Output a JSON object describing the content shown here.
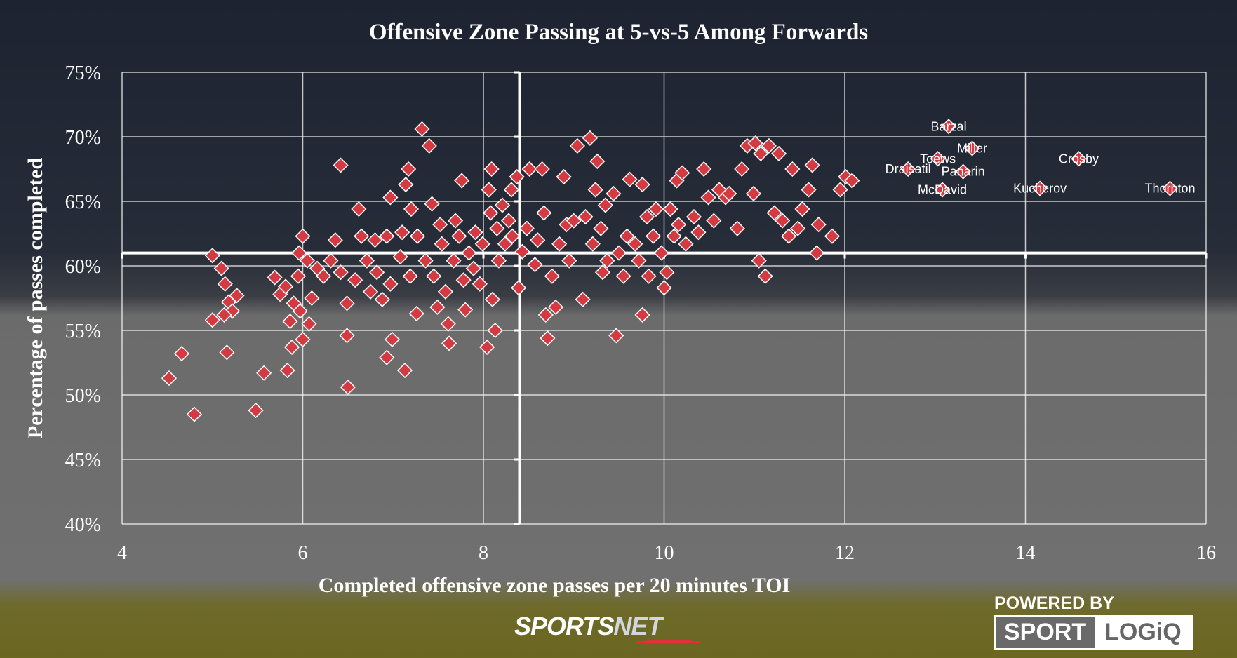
{
  "chart_data": {
    "type": "scatter",
    "title": "Offensive Zone Passing at 5-vs-5 Among Forwards",
    "xlabel": "Completed offensive zone passes per 20 minutes TOI",
    "ylabel": "Percentage of passes completed",
    "xlim": [
      4,
      16
    ],
    "ylim": [
      40,
      75
    ],
    "x_ticks": [
      "4",
      "6",
      "8",
      "10",
      "12",
      "14",
      "16"
    ],
    "y_ticks": [
      "40%",
      "45%",
      "50%",
      "55%",
      "60%",
      "65%",
      "70%",
      "75%"
    ],
    "grid": true,
    "average_lines": {
      "x": 8.4,
      "y": 61.0
    },
    "marker": "diamond",
    "marker_color": "#d43a42",
    "labeled_points": [
      {
        "name": "Barzal",
        "x": 13.15,
        "y": 70.8
      },
      {
        "name": "Miller",
        "x": 13.41,
        "y": 69.1
      },
      {
        "name": "Toews",
        "x": 13.03,
        "y": 68.3
      },
      {
        "name": "Draisatil",
        "x": 12.7,
        "y": 67.5
      },
      {
        "name": "Panarin",
        "x": 13.31,
        "y": 67.3
      },
      {
        "name": "McDavid",
        "x": 13.08,
        "y": 65.9
      },
      {
        "name": "Crosby",
        "x": 14.59,
        "y": 68.3
      },
      {
        "name": "Kucherov",
        "x": 14.16,
        "y": 66.0
      },
      {
        "name": "Thornton",
        "x": 15.6,
        "y": 66.0
      }
    ],
    "points": [
      [
        4.52,
        51.3
      ],
      [
        4.66,
        53.2
      ],
      [
        4.8,
        48.5
      ],
      [
        5.0,
        60.8
      ],
      [
        5.0,
        55.8
      ],
      [
        5.1,
        59.8
      ],
      [
        5.14,
        58.6
      ],
      [
        5.18,
        57.2
      ],
      [
        5.22,
        56.5
      ],
      [
        5.16,
        53.3
      ],
      [
        5.13,
        56.2
      ],
      [
        5.27,
        57.7
      ],
      [
        5.48,
        48.8
      ],
      [
        5.57,
        51.7
      ],
      [
        5.69,
        59.1
      ],
      [
        5.75,
        57.8
      ],
      [
        5.81,
        58.4
      ],
      [
        5.83,
        51.9
      ],
      [
        5.88,
        53.7
      ],
      [
        5.9,
        57.1
      ],
      [
        5.86,
        55.7
      ],
      [
        5.95,
        59.2
      ],
      [
        5.96,
        61.0
      ],
      [
        6.0,
        62.3
      ],
      [
        6.05,
        60.4
      ],
      [
        6.0,
        54.3
      ],
      [
        6.07,
        55.5
      ],
      [
        5.97,
        56.5
      ],
      [
        6.1,
        57.5
      ],
      [
        6.16,
        59.8
      ],
      [
        6.23,
        59.2
      ],
      [
        6.31,
        60.4
      ],
      [
        6.36,
        62.0
      ],
      [
        6.42,
        59.5
      ],
      [
        6.42,
        67.8
      ],
      [
        6.49,
        57.1
      ],
      [
        6.49,
        54.6
      ],
      [
        6.5,
        50.6
      ],
      [
        6.62,
        64.4
      ],
      [
        6.58,
        58.9
      ],
      [
        6.65,
        62.3
      ],
      [
        6.71,
        60.4
      ],
      [
        6.75,
        58.0
      ],
      [
        6.8,
        62.0
      ],
      [
        6.82,
        59.5
      ],
      [
        6.88,
        57.4
      ],
      [
        6.93,
        62.3
      ],
      [
        6.97,
        58.6
      ],
      [
        6.93,
        52.9
      ],
      [
        6.99,
        54.3
      ],
      [
        6.97,
        65.3
      ],
      [
        7.08,
        60.7
      ],
      [
        7.1,
        62.6
      ],
      [
        7.13,
        51.9
      ],
      [
        7.19,
        59.2
      ],
      [
        7.14,
        66.3
      ],
      [
        7.17,
        67.5
      ],
      [
        7.2,
        64.4
      ],
      [
        7.26,
        56.3
      ],
      [
        7.27,
        62.3
      ],
      [
        7.32,
        70.6
      ],
      [
        7.36,
        60.4
      ],
      [
        7.4,
        69.3
      ],
      [
        7.43,
        64.8
      ],
      [
        7.45,
        59.2
      ],
      [
        7.49,
        56.8
      ],
      [
        7.52,
        63.2
      ],
      [
        7.54,
        61.7
      ],
      [
        7.58,
        58.0
      ],
      [
        7.61,
        55.5
      ],
      [
        7.62,
        54.0
      ],
      [
        7.67,
        60.4
      ],
      [
        7.69,
        63.5
      ],
      [
        7.73,
        62.3
      ],
      [
        7.76,
        66.6
      ],
      [
        7.78,
        58.9
      ],
      [
        7.8,
        56.6
      ],
      [
        7.84,
        61.0
      ],
      [
        7.89,
        59.8
      ],
      [
        7.91,
        62.6
      ],
      [
        7.96,
        58.6
      ],
      [
        7.99,
        61.7
      ],
      [
        8.04,
        53.7
      ],
      [
        8.06,
        65.9
      ],
      [
        8.08,
        64.1
      ],
      [
        8.09,
        67.5
      ],
      [
        8.1,
        57.4
      ],
      [
        8.13,
        55.0
      ],
      [
        8.15,
        62.9
      ],
      [
        8.17,
        60.4
      ],
      [
        8.21,
        64.7
      ],
      [
        8.24,
        61.7
      ],
      [
        8.28,
        63.5
      ],
      [
        8.31,
        65.9
      ],
      [
        8.32,
        62.3
      ],
      [
        8.37,
        66.9
      ],
      [
        8.39,
        58.3
      ],
      [
        8.43,
        61.1
      ],
      [
        8.48,
        62.9
      ],
      [
        8.51,
        67.5
      ],
      [
        8.57,
        60.1
      ],
      [
        8.6,
        62.0
      ],
      [
        8.65,
        67.5
      ],
      [
        8.67,
        64.1
      ],
      [
        8.69,
        56.2
      ],
      [
        8.71,
        54.4
      ],
      [
        8.76,
        59.2
      ],
      [
        8.8,
        56.8
      ],
      [
        8.84,
        61.7
      ],
      [
        8.89,
        66.9
      ],
      [
        8.92,
        63.2
      ],
      [
        8.95,
        60.4
      ],
      [
        9.0,
        63.5
      ],
      [
        9.04,
        69.3
      ],
      [
        9.1,
        57.4
      ],
      [
        9.13,
        63.8
      ],
      [
        9.18,
        69.9
      ],
      [
        9.21,
        61.7
      ],
      [
        9.24,
        65.9
      ],
      [
        9.26,
        68.1
      ],
      [
        9.3,
        62.9
      ],
      [
        9.32,
        59.5
      ],
      [
        9.35,
        64.7
      ],
      [
        9.37,
        60.4
      ],
      [
        9.44,
        65.6
      ],
      [
        9.47,
        54.6
      ],
      [
        9.5,
        61.0
      ],
      [
        9.55,
        59.2
      ],
      [
        9.59,
        62.3
      ],
      [
        9.62,
        66.7
      ],
      [
        9.68,
        61.7
      ],
      [
        9.72,
        60.4
      ],
      [
        9.76,
        56.2
      ],
      [
        9.76,
        66.3
      ],
      [
        9.81,
        63.8
      ],
      [
        9.83,
        59.2
      ],
      [
        9.88,
        62.3
      ],
      [
        9.91,
        64.4
      ],
      [
        9.97,
        61.0
      ],
      [
        10.0,
        58.3
      ],
      [
        10.03,
        59.5
      ],
      [
        10.07,
        64.4
      ],
      [
        10.11,
        62.3
      ],
      [
        10.14,
        66.6
      ],
      [
        10.16,
        63.2
      ],
      [
        10.2,
        67.2
      ],
      [
        10.24,
        61.7
      ],
      [
        10.33,
        63.8
      ],
      [
        10.38,
        62.6
      ],
      [
        10.44,
        67.5
      ],
      [
        10.49,
        65.3
      ],
      [
        10.55,
        63.5
      ],
      [
        10.61,
        65.9
      ],
      [
        10.68,
        65.3
      ],
      [
        10.72,
        65.6
      ],
      [
        10.81,
        62.9
      ],
      [
        10.86,
        67.5
      ],
      [
        10.92,
        69.3
      ],
      [
        10.99,
        65.6
      ],
      [
        11.01,
        69.5
      ],
      [
        11.05,
        60.4
      ],
      [
        11.07,
        68.7
      ],
      [
        11.12,
        59.2
      ],
      [
        11.16,
        69.3
      ],
      [
        11.22,
        64.1
      ],
      [
        11.27,
        68.7
      ],
      [
        11.31,
        63.5
      ],
      [
        11.38,
        62.3
      ],
      [
        11.42,
        67.5
      ],
      [
        11.48,
        62.9
      ],
      [
        11.53,
        64.4
      ],
      [
        11.6,
        65.9
      ],
      [
        11.64,
        67.8
      ],
      [
        11.69,
        61.0
      ],
      [
        11.71,
        63.2
      ],
      [
        11.86,
        62.3
      ],
      [
        11.95,
        65.9
      ],
      [
        12.01,
        66.9
      ],
      [
        12.08,
        66.6
      ]
    ]
  },
  "branding": {
    "sportsnet_a": "SPORTS",
    "sportsnet_b": "NET",
    "powered_by": "POWERED BY",
    "logo_a": "SPORT",
    "logo_b": "LOGiQ"
  }
}
